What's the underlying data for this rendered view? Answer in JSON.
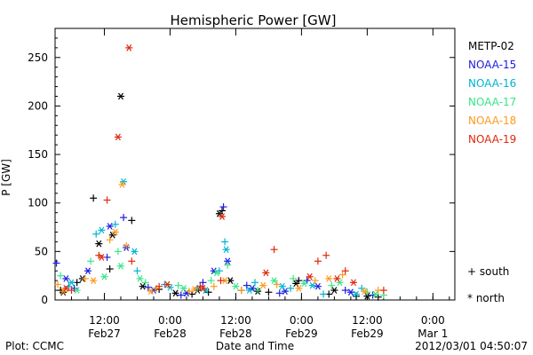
{
  "chart_data": {
    "type": "scatter",
    "title": "Hemispheric Power [GW]",
    "xlabel": "Date and Time",
    "ylabel": "P [GW]",
    "x_unit": "datetime",
    "xlim": [
      "2012-02-27 03:00",
      "2012-03-01 04:00"
    ],
    "ylim": [
      0,
      280
    ],
    "yticks": [
      0,
      50,
      100,
      150,
      200,
      250
    ],
    "xticks": [
      {
        "t": "2012-02-27 12:00",
        "top": "12:00",
        "bottom": "Feb27"
      },
      {
        "t": "2012-02-28 00:00",
        "top": "0:00",
        "bottom": "Feb28"
      },
      {
        "t": "2012-02-28 12:00",
        "top": "12:00",
        "bottom": "Feb28"
      },
      {
        "t": "2012-02-29 00:00",
        "top": "0:00",
        "bottom": "Feb29"
      },
      {
        "t": "2012-02-29 12:00",
        "top": "12:00",
        "bottom": "Feb29"
      },
      {
        "t": "2012-03-01 00:00",
        "top": "0:00",
        "bottom": "Mar 1"
      }
    ],
    "grid": false,
    "legend": {
      "placement": "right",
      "markers": [
        {
          "symbol": "+",
          "label": "south"
        },
        {
          "symbol": "*",
          "label": "north"
        }
      ]
    },
    "series": [
      {
        "name": "METP-02",
        "color": "#000000",
        "south": [
          [
            "2012-02-27 04:00",
            10
          ],
          [
            "2012-02-27 07:00",
            18
          ],
          [
            "2012-02-27 10:00",
            105
          ],
          [
            "2012-02-27 13:00",
            32
          ],
          [
            "2012-02-27 17:00",
            82
          ],
          [
            "2012-02-27 22:00",
            11
          ],
          [
            "2012-02-28 04:00",
            6
          ],
          [
            "2012-02-28 07:00",
            8
          ],
          [
            "2012-02-28 09:30",
            92
          ],
          [
            "2012-02-28 13:00",
            10
          ],
          [
            "2012-02-28 18:00",
            8
          ],
          [
            "2012-02-28 23:30",
            20
          ],
          [
            "2012-02-29 05:00",
            6
          ],
          [
            "2012-02-29 10:00",
            4
          ],
          [
            "2012-02-29 14:00",
            3
          ]
        ],
        "north": [
          [
            "2012-02-27 04:30",
            8
          ],
          [
            "2012-02-27 08:00",
            22
          ],
          [
            "2012-02-27 11:00",
            58
          ],
          [
            "2012-02-27 13:30",
            67
          ],
          [
            "2012-02-27 15:00",
            210
          ],
          [
            "2012-02-27 19:00",
            14
          ],
          [
            "2012-02-28 01:00",
            7
          ],
          [
            "2012-02-28 05:00",
            10
          ],
          [
            "2012-02-28 09:00",
            89
          ],
          [
            "2012-02-28 11:00",
            20
          ],
          [
            "2012-02-28 16:00",
            9
          ],
          [
            "2012-02-28 23:00",
            17
          ],
          [
            "2012-02-29 06:00",
            10
          ],
          [
            "2012-02-29 12:00",
            4
          ]
        ]
      },
      {
        "name": "NOAA-15",
        "color": "#1c1ce0",
        "south": [
          [
            "2012-02-27 03:15",
            38
          ],
          [
            "2012-02-27 06:30",
            12
          ],
          [
            "2012-02-27 12:30",
            44
          ],
          [
            "2012-02-27 15:30",
            85
          ],
          [
            "2012-02-27 20:00",
            13
          ],
          [
            "2012-02-28 02:00",
            5
          ],
          [
            "2012-02-28 06:00",
            18
          ],
          [
            "2012-02-28 09:45",
            96
          ],
          [
            "2012-02-28 14:00",
            15
          ],
          [
            "2012-02-28 20:00",
            7
          ],
          [
            "2012-02-29 01:00",
            20
          ],
          [
            "2012-02-29 08:00",
            10
          ],
          [
            "2012-02-29 13:00",
            5
          ]
        ],
        "north": [
          [
            "2012-02-27 05:00",
            22
          ],
          [
            "2012-02-27 09:00",
            30
          ],
          [
            "2012-02-27 13:00",
            76
          ],
          [
            "2012-02-27 16:00",
            54
          ],
          [
            "2012-02-27 21:00",
            10
          ],
          [
            "2012-02-28 03:00",
            7
          ],
          [
            "2012-02-28 08:00",
            30
          ],
          [
            "2012-02-28 10:30",
            40
          ],
          [
            "2012-02-28 15:00",
            12
          ],
          [
            "2012-02-28 21:00",
            9
          ],
          [
            "2012-02-29 03:00",
            14
          ],
          [
            "2012-02-29 09:00",
            8
          ]
        ]
      },
      {
        "name": "NOAA-16",
        "color": "#00b4d2",
        "south": [
          [
            "2012-02-27 05:30",
            14
          ],
          [
            "2012-02-27 10:30",
            68
          ],
          [
            "2012-02-27 14:00",
            78
          ],
          [
            "2012-02-27 18:00",
            30
          ],
          [
            "2012-02-27 23:00",
            16
          ],
          [
            "2012-02-28 05:00",
            12
          ],
          [
            "2012-02-28 09:00",
            30
          ],
          [
            "2012-02-28 10:00",
            60
          ],
          [
            "2012-02-28 15:30",
            18
          ],
          [
            "2012-02-28 22:00",
            12
          ],
          [
            "2012-02-29 04:00",
            6
          ],
          [
            "2012-02-29 11:00",
            12
          ]
        ],
        "north": [
          [
            "2012-02-27 06:00",
            18
          ],
          [
            "2012-02-27 11:30",
            72
          ],
          [
            "2012-02-27 15:30",
            122
          ],
          [
            "2012-02-27 17:30",
            50
          ],
          [
            "2012-02-28 00:00",
            13
          ],
          [
            "2012-02-28 06:30",
            10
          ],
          [
            "2012-02-28 10:15",
            52
          ],
          [
            "2012-02-28 14:30",
            10
          ],
          [
            "2012-02-28 20:30",
            14
          ],
          [
            "2012-02-29 02:00",
            15
          ],
          [
            "2012-02-29 10:00",
            6
          ]
        ]
      },
      {
        "name": "NOAA-17",
        "color": "#38e688",
        "south": [
          [
            "2012-02-27 04:00",
            25
          ],
          [
            "2012-02-27 09:30",
            40
          ],
          [
            "2012-02-27 14:30",
            50
          ],
          [
            "2012-02-27 19:30",
            18
          ],
          [
            "2012-02-28 01:30",
            15
          ],
          [
            "2012-02-28 07:30",
            20
          ],
          [
            "2012-02-28 10:30",
            36
          ],
          [
            "2012-02-28 16:00",
            10
          ],
          [
            "2012-02-28 22:30",
            22
          ],
          [
            "2012-02-29 05:30",
            15
          ],
          [
            "2012-02-29 12:00",
            8
          ],
          [
            "2012-02-29 15:00",
            5
          ]
        ],
        "north": [
          [
            "2012-02-27 07:00",
            10
          ],
          [
            "2012-02-27 12:00",
            24
          ],
          [
            "2012-02-27 15:00",
            35
          ],
          [
            "2012-02-27 18:30",
            22
          ],
          [
            "2012-02-28 02:30",
            12
          ],
          [
            "2012-02-28 08:30",
            28
          ],
          [
            "2012-02-28 12:00",
            14
          ],
          [
            "2012-02-28 19:00",
            20
          ],
          [
            "2012-02-29 00:30",
            17
          ],
          [
            "2012-02-29 07:00",
            18
          ],
          [
            "2012-02-29 13:30",
            6
          ]
        ]
      },
      {
        "name": "NOAA-18",
        "color": "#ff9a1e",
        "south": [
          [
            "2012-02-27 03:30",
            16
          ],
          [
            "2012-02-27 08:30",
            22
          ],
          [
            "2012-02-27 13:00",
            62
          ],
          [
            "2012-02-27 16:00",
            56
          ],
          [
            "2012-02-27 21:30",
            12
          ],
          [
            "2012-02-28 03:30",
            9
          ],
          [
            "2012-02-28 08:00",
            14
          ],
          [
            "2012-02-28 13:00",
            10
          ],
          [
            "2012-02-28 19:30",
            16
          ],
          [
            "2012-02-29 02:30",
            20
          ],
          [
            "2012-02-29 07:30",
            26
          ],
          [
            "2012-02-29 14:00",
            10
          ]
        ],
        "north": [
          [
            "2012-02-27 04:30",
            9
          ],
          [
            "2012-02-27 10:00",
            20
          ],
          [
            "2012-02-27 14:00",
            70
          ],
          [
            "2012-02-27 15:15",
            119
          ],
          [
            "2012-02-27 20:30",
            9
          ],
          [
            "2012-02-28 04:30",
            11
          ],
          [
            "2012-02-28 10:00",
            20
          ],
          [
            "2012-02-28 17:00",
            15
          ],
          [
            "2012-02-28 23:30",
            12
          ],
          [
            "2012-02-29 05:00",
            22
          ],
          [
            "2012-02-29 11:30",
            9
          ]
        ]
      },
      {
        "name": "NOAA-19",
        "color": "#e0280a",
        "south": [
          [
            "2012-02-27 06:00",
            10
          ],
          [
            "2012-02-27 11:00",
            46
          ],
          [
            "2012-02-27 12:30",
            103
          ],
          [
            "2012-02-27 17:00",
            40
          ],
          [
            "2012-02-27 22:00",
            14
          ],
          [
            "2012-02-28 05:30",
            14
          ],
          [
            "2012-02-28 09:15",
            20
          ],
          [
            "2012-02-28 19:00",
            52
          ],
          [
            "2012-02-29 03:00",
            40
          ],
          [
            "2012-02-29 04:30",
            46
          ],
          [
            "2012-02-29 08:00",
            30
          ],
          [
            "2012-02-29 15:00",
            10
          ]
        ],
        "north": [
          [
            "2012-02-27 05:00",
            12
          ],
          [
            "2012-02-27 11:30",
            44
          ],
          [
            "2012-02-27 14:30",
            168
          ],
          [
            "2012-02-27 16:30",
            260
          ],
          [
            "2012-02-27 23:30",
            16
          ],
          [
            "2012-02-28 06:00",
            12
          ],
          [
            "2012-02-28 09:30",
            86
          ],
          [
            "2012-02-28 17:30",
            28
          ],
          [
            "2012-02-29 01:30",
            24
          ],
          [
            "2012-02-29 06:30",
            22
          ],
          [
            "2012-02-29 09:30",
            18
          ]
        ]
      }
    ]
  },
  "footer": {
    "left": "Plot: CCMC",
    "right": "2012/03/01 04:50:07"
  }
}
